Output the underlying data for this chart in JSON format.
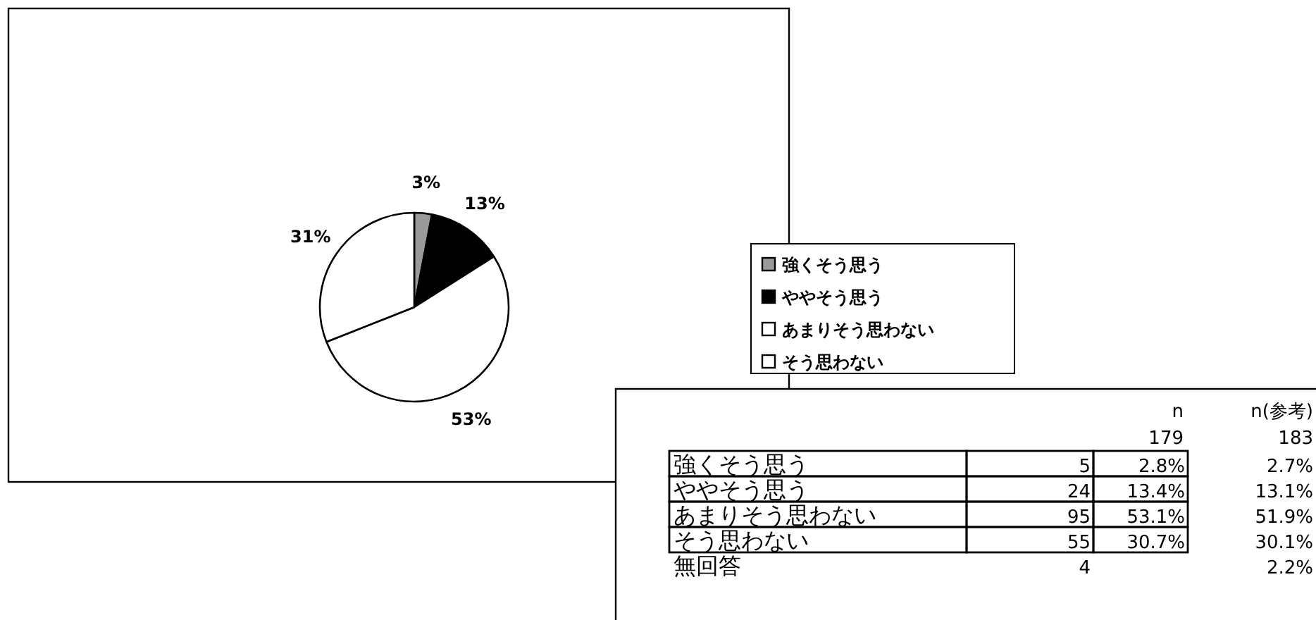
{
  "chart_data": [
    {
      "type": "pie",
      "categories": [
        "強くそう思う",
        "ややそう思う",
        "あまりそう思わない",
        "そう思わない"
      ],
      "values": [
        3,
        13,
        53,
        31
      ],
      "colors": [
        "#9a9a9a",
        "#000000",
        "#ffffff",
        "#ffffff"
      ],
      "value_labels": [
        "3%",
        "13%",
        "53%",
        "31%"
      ],
      "legend": "right"
    },
    {
      "type": "other",
      "annotations": [
        "n",
        "n(参考)",
        "179",
        "183",
        "強くそう思う",
        "5",
        "2.8%",
        "2.7%",
        "ややそう思う",
        "24",
        "13.4%",
        "13.1%",
        "あまりそう思わない",
        "95",
        "53.1%",
        "51.9%",
        "そう思わない",
        "55",
        "30.7%",
        "30.1%",
        "無回答",
        "4",
        "2.2%"
      ]
    }
  ]
}
